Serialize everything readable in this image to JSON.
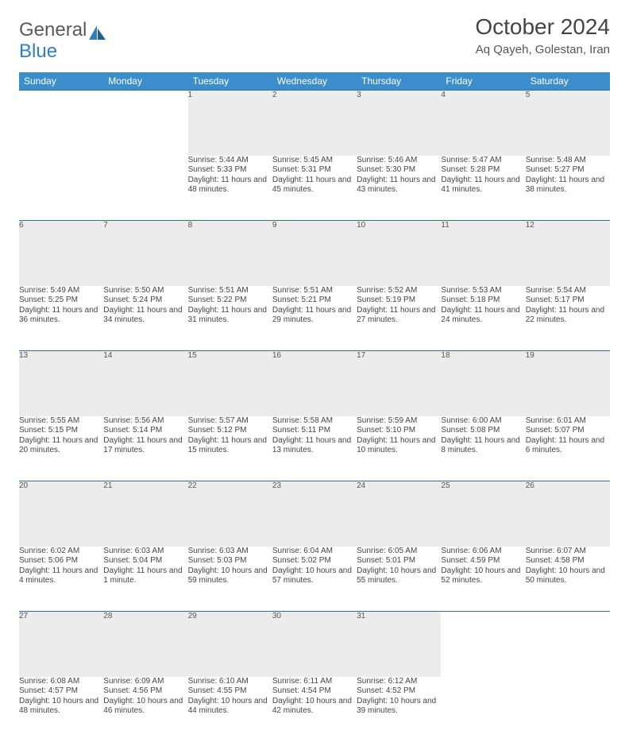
{
  "logo": {
    "text1": "General",
    "text2": "Blue"
  },
  "title": "October 2024",
  "location": "Aq Qayeh, Golestan, Iran",
  "weekdays": [
    "Sunday",
    "Monday",
    "Tuesday",
    "Wednesday",
    "Thursday",
    "Friday",
    "Saturday"
  ],
  "colors": {
    "header_bg": "#3c8dcc",
    "header_text": "#ffffff",
    "daynum_bg": "#ececec",
    "rule": "#2f6fa3",
    "body_text": "#444444",
    "logo_gray": "#5a5a5a",
    "logo_blue": "#2f7fbf"
  },
  "weeks": [
    [
      null,
      null,
      {
        "n": "1",
        "sr": "Sunrise: 5:44 AM",
        "ss": "Sunset: 5:33 PM",
        "dl": "Daylight: 11 hours and 48 minutes."
      },
      {
        "n": "2",
        "sr": "Sunrise: 5:45 AM",
        "ss": "Sunset: 5:31 PM",
        "dl": "Daylight: 11 hours and 45 minutes."
      },
      {
        "n": "3",
        "sr": "Sunrise: 5:46 AM",
        "ss": "Sunset: 5:30 PM",
        "dl": "Daylight: 11 hours and 43 minutes."
      },
      {
        "n": "4",
        "sr": "Sunrise: 5:47 AM",
        "ss": "Sunset: 5:28 PM",
        "dl": "Daylight: 11 hours and 41 minutes."
      },
      {
        "n": "5",
        "sr": "Sunrise: 5:48 AM",
        "ss": "Sunset: 5:27 PM",
        "dl": "Daylight: 11 hours and 38 minutes."
      }
    ],
    [
      {
        "n": "6",
        "sr": "Sunrise: 5:49 AM",
        "ss": "Sunset: 5:25 PM",
        "dl": "Daylight: 11 hours and 36 minutes."
      },
      {
        "n": "7",
        "sr": "Sunrise: 5:50 AM",
        "ss": "Sunset: 5:24 PM",
        "dl": "Daylight: 11 hours and 34 minutes."
      },
      {
        "n": "8",
        "sr": "Sunrise: 5:51 AM",
        "ss": "Sunset: 5:22 PM",
        "dl": "Daylight: 11 hours and 31 minutes."
      },
      {
        "n": "9",
        "sr": "Sunrise: 5:51 AM",
        "ss": "Sunset: 5:21 PM",
        "dl": "Daylight: 11 hours and 29 minutes."
      },
      {
        "n": "10",
        "sr": "Sunrise: 5:52 AM",
        "ss": "Sunset: 5:19 PM",
        "dl": "Daylight: 11 hours and 27 minutes."
      },
      {
        "n": "11",
        "sr": "Sunrise: 5:53 AM",
        "ss": "Sunset: 5:18 PM",
        "dl": "Daylight: 11 hours and 24 minutes."
      },
      {
        "n": "12",
        "sr": "Sunrise: 5:54 AM",
        "ss": "Sunset: 5:17 PM",
        "dl": "Daylight: 11 hours and 22 minutes."
      }
    ],
    [
      {
        "n": "13",
        "sr": "Sunrise: 5:55 AM",
        "ss": "Sunset: 5:15 PM",
        "dl": "Daylight: 11 hours and 20 minutes."
      },
      {
        "n": "14",
        "sr": "Sunrise: 5:56 AM",
        "ss": "Sunset: 5:14 PM",
        "dl": "Daylight: 11 hours and 17 minutes."
      },
      {
        "n": "15",
        "sr": "Sunrise: 5:57 AM",
        "ss": "Sunset: 5:12 PM",
        "dl": "Daylight: 11 hours and 15 minutes."
      },
      {
        "n": "16",
        "sr": "Sunrise: 5:58 AM",
        "ss": "Sunset: 5:11 PM",
        "dl": "Daylight: 11 hours and 13 minutes."
      },
      {
        "n": "17",
        "sr": "Sunrise: 5:59 AM",
        "ss": "Sunset: 5:10 PM",
        "dl": "Daylight: 11 hours and 10 minutes."
      },
      {
        "n": "18",
        "sr": "Sunrise: 6:00 AM",
        "ss": "Sunset: 5:08 PM",
        "dl": "Daylight: 11 hours and 8 minutes."
      },
      {
        "n": "19",
        "sr": "Sunrise: 6:01 AM",
        "ss": "Sunset: 5:07 PM",
        "dl": "Daylight: 11 hours and 6 minutes."
      }
    ],
    [
      {
        "n": "20",
        "sr": "Sunrise: 6:02 AM",
        "ss": "Sunset: 5:06 PM",
        "dl": "Daylight: 11 hours and 4 minutes."
      },
      {
        "n": "21",
        "sr": "Sunrise: 6:03 AM",
        "ss": "Sunset: 5:04 PM",
        "dl": "Daylight: 11 hours and 1 minute."
      },
      {
        "n": "22",
        "sr": "Sunrise: 6:03 AM",
        "ss": "Sunset: 5:03 PM",
        "dl": "Daylight: 10 hours and 59 minutes."
      },
      {
        "n": "23",
        "sr": "Sunrise: 6:04 AM",
        "ss": "Sunset: 5:02 PM",
        "dl": "Daylight: 10 hours and 57 minutes."
      },
      {
        "n": "24",
        "sr": "Sunrise: 6:05 AM",
        "ss": "Sunset: 5:01 PM",
        "dl": "Daylight: 10 hours and 55 minutes."
      },
      {
        "n": "25",
        "sr": "Sunrise: 6:06 AM",
        "ss": "Sunset: 4:59 PM",
        "dl": "Daylight: 10 hours and 52 minutes."
      },
      {
        "n": "26",
        "sr": "Sunrise: 6:07 AM",
        "ss": "Sunset: 4:58 PM",
        "dl": "Daylight: 10 hours and 50 minutes."
      }
    ],
    [
      {
        "n": "27",
        "sr": "Sunrise: 6:08 AM",
        "ss": "Sunset: 4:57 PM",
        "dl": "Daylight: 10 hours and 48 minutes."
      },
      {
        "n": "28",
        "sr": "Sunrise: 6:09 AM",
        "ss": "Sunset: 4:56 PM",
        "dl": "Daylight: 10 hours and 46 minutes."
      },
      {
        "n": "29",
        "sr": "Sunrise: 6:10 AM",
        "ss": "Sunset: 4:55 PM",
        "dl": "Daylight: 10 hours and 44 minutes."
      },
      {
        "n": "30",
        "sr": "Sunrise: 6:11 AM",
        "ss": "Sunset: 4:54 PM",
        "dl": "Daylight: 10 hours and 42 minutes."
      },
      {
        "n": "31",
        "sr": "Sunrise: 6:12 AM",
        "ss": "Sunset: 4:52 PM",
        "dl": "Daylight: 10 hours and 39 minutes."
      },
      null,
      null
    ]
  ]
}
